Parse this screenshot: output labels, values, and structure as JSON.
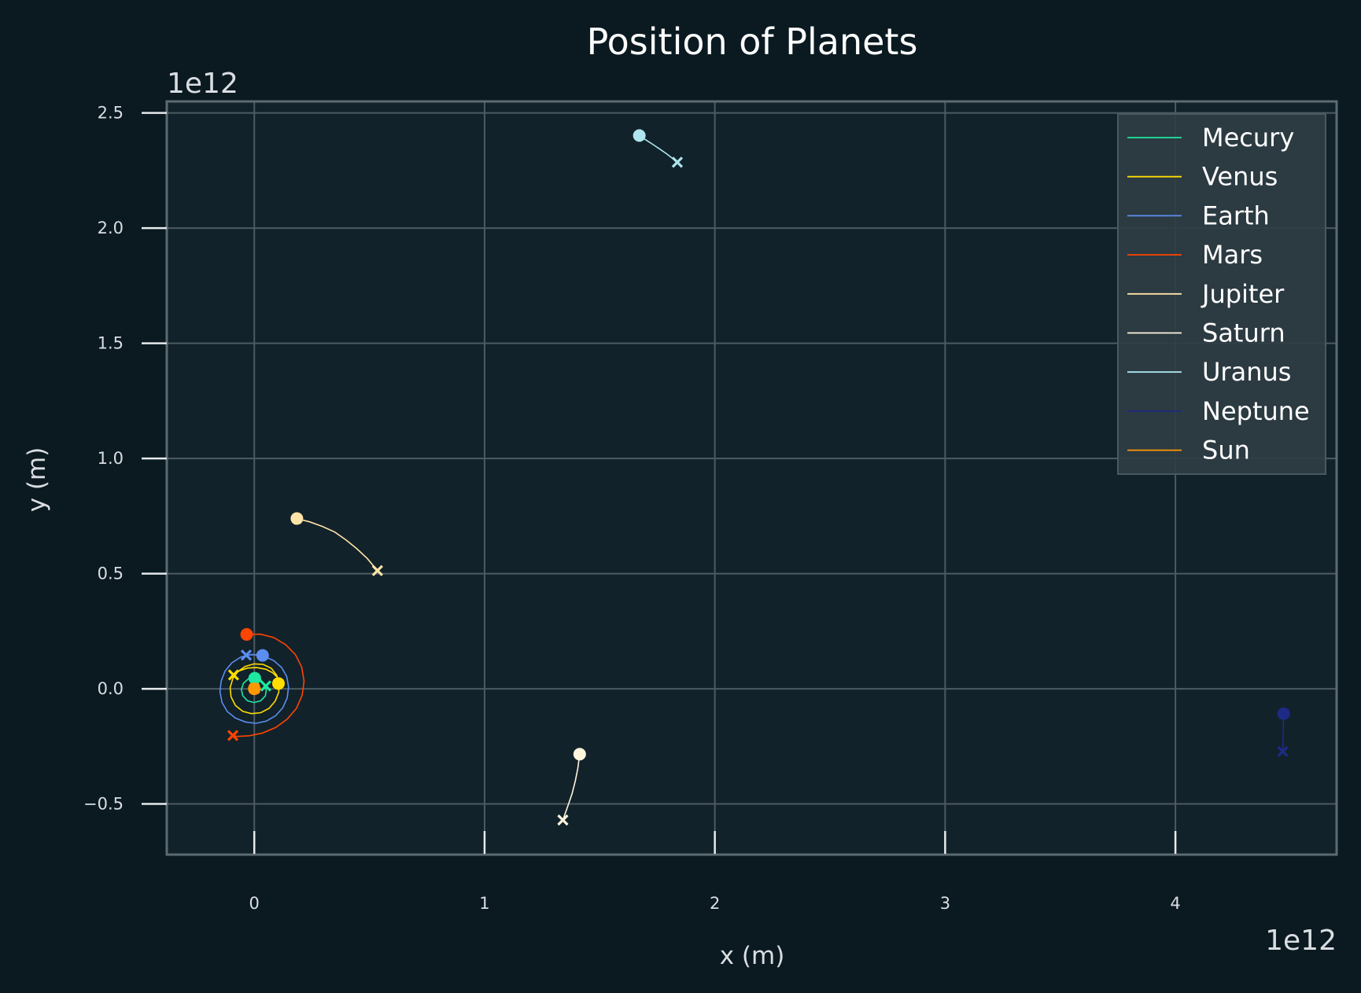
{
  "chart_data": {
    "type": "line",
    "title": "Position of Planets",
    "xlabel": "x (m)",
    "ylabel": "y (m)",
    "x_offset_label": "1e12",
    "y_offset_label": "1e12",
    "xlim": [
      -0.38,
      4.7
    ],
    "ylim": [
      -0.72,
      2.55
    ],
    "xticks": [
      0,
      1,
      2,
      3,
      4
    ],
    "xtick_labels": [
      "0",
      "1",
      "2",
      "3",
      "4"
    ],
    "yticks": [
      -0.5,
      0.0,
      0.5,
      1.0,
      1.5,
      2.0,
      2.5
    ],
    "ytick_labels": [
      "−0.5",
      "0.0",
      "0.5",
      "1.0",
      "1.5",
      "2.0",
      "2.5"
    ],
    "grid": true,
    "legend_position": "top-right",
    "units_note": "x and y in units of 1e12 m",
    "series": [
      {
        "name": "Mecury",
        "color": "#1de9a0",
        "end": [
          0.002,
          0.046
        ],
        "path": [
          [
            0.002,
            0.046
          ],
          [
            0.036,
            0.026
          ],
          [
            0.052,
            -0.004
          ],
          [
            0.048,
            -0.031
          ],
          [
            0.028,
            -0.052
          ],
          [
            -0.001,
            -0.06
          ],
          [
            -0.03,
            -0.052
          ],
          [
            -0.05,
            -0.03
          ],
          [
            -0.056,
            -0.002
          ],
          [
            -0.047,
            0.024
          ],
          [
            -0.026,
            0.043
          ],
          [
            0.0,
            0.05
          ],
          [
            0.025,
            0.043
          ],
          [
            0.038,
            0.025
          ],
          [
            0.05,
            0.012
          ]
        ]
      },
      {
        "name": "Venus",
        "color": "#ffdd00",
        "end": [
          0.105,
          0.023
        ],
        "path": [
          [
            0.105,
            0.023
          ],
          [
            0.098,
            0.058
          ],
          [
            0.074,
            0.089
          ],
          [
            0.038,
            0.106
          ],
          [
            -0.001,
            0.108
          ],
          [
            -0.039,
            0.097
          ],
          [
            -0.071,
            0.075
          ],
          [
            -0.093,
            0.045
          ],
          [
            -0.105,
            0.005
          ],
          [
            -0.101,
            -0.035
          ],
          [
            -0.082,
            -0.072
          ],
          [
            -0.05,
            -0.098
          ],
          [
            -0.012,
            -0.108
          ],
          [
            0.028,
            -0.104
          ],
          [
            0.064,
            -0.085
          ],
          [
            0.091,
            -0.053
          ],
          [
            0.106,
            -0.015
          ],
          [
            0.108,
            0.02
          ],
          [
            0.1,
            0.05
          ],
          [
            0.08,
            0.07
          ],
          [
            0.05,
            0.085
          ],
          [
            0.01,
            0.092
          ],
          [
            -0.03,
            0.09
          ],
          [
            -0.065,
            0.078
          ],
          [
            -0.09,
            0.06
          ]
        ]
      },
      {
        "name": "Earth",
        "color": "#5b8ef0",
        "end": [
          0.036,
          0.145
        ],
        "path": [
          [
            0.036,
            0.145
          ],
          [
            -0.012,
            0.149
          ],
          [
            -0.058,
            0.138
          ],
          [
            -0.097,
            0.113
          ],
          [
            -0.127,
            0.077
          ],
          [
            -0.144,
            0.033
          ],
          [
            -0.149,
            -0.014
          ],
          [
            -0.14,
            -0.06
          ],
          [
            -0.117,
            -0.099
          ],
          [
            -0.082,
            -0.127
          ],
          [
            -0.039,
            -0.144
          ],
          [
            0.007,
            -0.15
          ],
          [
            0.053,
            -0.14
          ],
          [
            0.093,
            -0.117
          ],
          [
            0.124,
            -0.082
          ],
          [
            0.143,
            -0.039
          ],
          [
            0.149,
            0.008
          ],
          [
            0.141,
            0.053
          ],
          [
            0.119,
            0.092
          ],
          [
            0.085,
            0.122
          ],
          [
            0.045,
            0.14
          ],
          [
            0.0,
            0.148
          ],
          [
            -0.035,
            0.146
          ]
        ]
      },
      {
        "name": "Mars",
        "color": "#ff4500",
        "end": [
          -0.033,
          0.236
        ],
        "path": [
          [
            -0.033,
            0.236
          ],
          [
            0.027,
            0.237
          ],
          [
            0.085,
            0.222
          ],
          [
            0.137,
            0.191
          ],
          [
            0.179,
            0.148
          ],
          [
            0.206,
            0.094
          ],
          [
            0.216,
            0.033
          ],
          [
            0.208,
            -0.028
          ],
          [
            0.183,
            -0.085
          ],
          [
            0.143,
            -0.132
          ],
          [
            0.093,
            -0.168
          ],
          [
            0.036,
            -0.192
          ],
          [
            -0.021,
            -0.204
          ],
          [
            -0.075,
            -0.207
          ],
          [
            -0.093,
            -0.203
          ]
        ]
      },
      {
        "name": "Jupiter",
        "color": "#ffe4a8",
        "end": [
          0.185,
          0.739
        ],
        "path": [
          [
            0.185,
            0.739
          ],
          [
            0.24,
            0.725
          ],
          [
            0.295,
            0.705
          ],
          [
            0.35,
            0.68
          ],
          [
            0.4,
            0.645
          ],
          [
            0.445,
            0.608
          ],
          [
            0.49,
            0.566
          ],
          [
            0.535,
            0.513
          ]
        ]
      },
      {
        "name": "Saturn",
        "color": "#fff5dd",
        "end": [
          1.413,
          -0.284
        ],
        "path": [
          [
            1.413,
            -0.284
          ],
          [
            1.405,
            -0.345
          ],
          [
            1.394,
            -0.4
          ],
          [
            1.38,
            -0.455
          ],
          [
            1.363,
            -0.505
          ],
          [
            1.34,
            -0.57
          ]
        ]
      },
      {
        "name": "Uranus",
        "color": "#aee6ee",
        "end": [
          1.672,
          2.402
        ],
        "path": [
          [
            1.672,
            2.402
          ],
          [
            1.7,
            2.383
          ],
          [
            1.73,
            2.364
          ],
          [
            1.76,
            2.344
          ],
          [
            1.79,
            2.323
          ],
          [
            1.837,
            2.286
          ]
        ]
      },
      {
        "name": "Neptune",
        "color": "#1d2b85",
        "end": [
          4.47,
          -0.108
        ],
        "path": [
          [
            4.47,
            -0.108
          ],
          [
            4.469,
            -0.15
          ],
          [
            4.468,
            -0.195
          ],
          [
            4.467,
            -0.235
          ],
          [
            4.466,
            -0.272
          ]
        ]
      },
      {
        "name": "Sun",
        "color": "#ff9800",
        "end": [
          0.0,
          0.0
        ],
        "path": [
          [
            0.0,
            0.0
          ],
          [
            0.001,
            0.001
          ]
        ]
      }
    ]
  }
}
